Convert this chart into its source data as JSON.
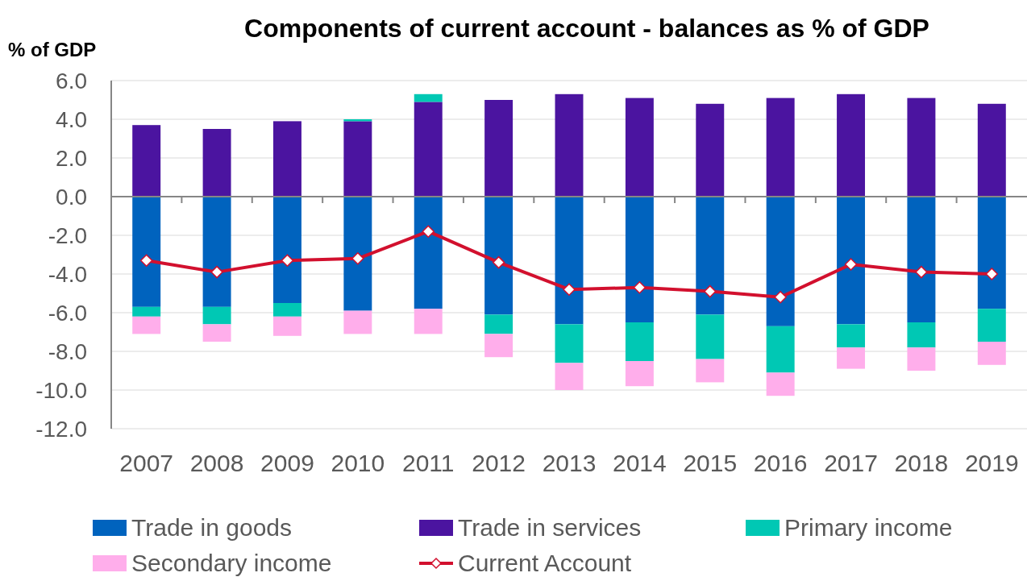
{
  "chart_data": {
    "type": "bar",
    "stacked": true,
    "title": "Components of current account - balances as % of GDP",
    "ylabel": "% of GDP",
    "categories": [
      "2007",
      "2008",
      "2009",
      "2010",
      "2011",
      "2012",
      "2013",
      "2014",
      "2015",
      "2016",
      "2017",
      "2018",
      "2019"
    ],
    "series": [
      {
        "name": "Trade in goods",
        "color": "#0063be",
        "values": [
          -5.7,
          -5.7,
          -5.5,
          -5.9,
          -5.8,
          -6.1,
          -6.6,
          -6.5,
          -6.1,
          -6.7,
          -6.6,
          -6.5,
          -5.8
        ]
      },
      {
        "name": "Trade in services",
        "color": "#4b14a0",
        "values": [
          3.7,
          3.5,
          3.9,
          3.9,
          4.9,
          5.0,
          5.3,
          5.1,
          4.8,
          5.1,
          5.3,
          5.1,
          4.8
        ]
      },
      {
        "name": "Primary income",
        "color": "#00c8b4",
        "values": [
          -0.5,
          -0.9,
          -0.7,
          0.1,
          0.4,
          -1.0,
          -2.0,
          -2.0,
          -2.3,
          -2.4,
          -1.2,
          -1.3,
          -1.7
        ]
      },
      {
        "name": "Secondary income",
        "color": "#ffaeeb",
        "values": [
          -0.9,
          -0.9,
          -1.0,
          -1.2,
          -1.3,
          -1.2,
          -1.4,
          -1.3,
          -1.2,
          -1.2,
          -1.1,
          -1.2,
          -1.2
        ]
      },
      {
        "name": "Current Account",
        "type": "line",
        "color": "#d2102e",
        "marker": "diamond",
        "values": [
          -3.3,
          -3.9,
          -3.3,
          -3.2,
          -1.8,
          -3.4,
          -4.8,
          -4.7,
          -4.9,
          -5.2,
          -3.5,
          -3.9,
          -4.0
        ]
      }
    ],
    "ylim": [
      -12,
      6
    ],
    "yticks": [
      {
        "value": -12,
        "label": "-12.0"
      },
      {
        "value": -10,
        "label": "-10.0"
      },
      {
        "value": -8,
        "label": "-8.0"
      },
      {
        "value": -6,
        "label": "-6.0"
      },
      {
        "value": -4,
        "label": "-4.0"
      },
      {
        "value": -2,
        "label": "-2.0"
      },
      {
        "value": 0,
        "label": "0.0"
      },
      {
        "value": 2,
        "label": "2.0"
      },
      {
        "value": 4,
        "label": "4.0"
      },
      {
        "value": 6,
        "label": "6.0"
      }
    ],
    "grid": "y",
    "legend": "bottom"
  }
}
